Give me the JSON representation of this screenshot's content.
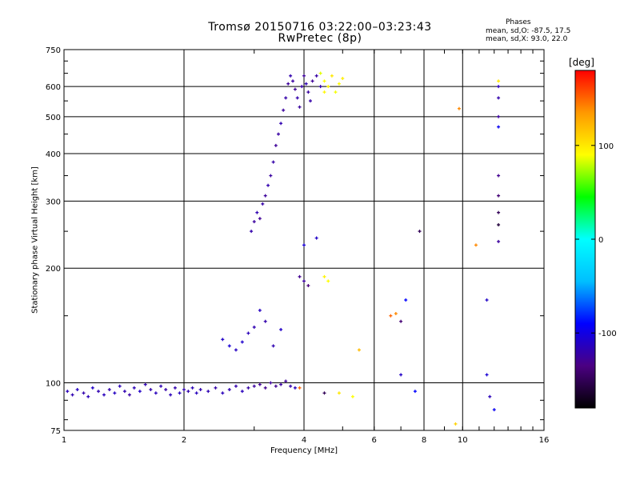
{
  "header": {
    "title_line1": "Tromsø 20150716 03:22:00–03:23:43",
    "title_line2": "RwPretec (8p)",
    "phases_heading": "Phases",
    "phases_line1": "mean, sd,O: -87.5, 17.5",
    "phases_line2": "mean, sd,X:  93.0, 22.0"
  },
  "chart_data": {
    "type": "scatter",
    "title": "Tromsø 20150716 03:22:00–03:23:43",
    "subtitle": "RwPretec (8p)",
    "xlabel": "Frequency [MHz]",
    "ylabel": "Stationary phase Virtual Height [km]",
    "x_scale": "log",
    "y_scale": "log",
    "xlim": [
      1,
      16
    ],
    "ylim": [
      75,
      750
    ],
    "x_ticks": [
      1,
      2,
      4,
      6,
      8,
      10,
      16
    ],
    "y_ticks": [
      75,
      100,
      200,
      300,
      400,
      500,
      600,
      750
    ],
    "grid": true,
    "colorbar": {
      "label": "[deg]",
      "range": [
        -180,
        180
      ],
      "ticks": [
        100,
        0,
        -100
      ],
      "colors": [
        "#000000",
        "#4b0082",
        "#0000ff",
        "#00bfff",
        "#00ffff",
        "#00ff00",
        "#ffff00",
        "#ff9900",
        "#ff0000"
      ]
    },
    "series": [
      {
        "points": [
          [
            1.02,
            95,
            -115
          ],
          [
            1.05,
            93,
            -118
          ],
          [
            1.08,
            96,
            -112
          ],
          [
            1.12,
            94,
            -120
          ],
          [
            1.15,
            92,
            -116
          ],
          [
            1.18,
            97,
            -110
          ],
          [
            1.22,
            95,
            -118
          ],
          [
            1.26,
            93,
            -114
          ],
          [
            1.3,
            96,
            -120
          ],
          [
            1.34,
            94,
            -112
          ],
          [
            1.38,
            98,
            -115
          ],
          [
            1.42,
            95,
            -118
          ],
          [
            1.46,
            93,
            -122
          ],
          [
            1.5,
            97,
            -116
          ],
          [
            1.55,
            95,
            -110
          ],
          [
            1.6,
            99,
            -118
          ],
          [
            1.65,
            96,
            -120
          ],
          [
            1.7,
            94,
            -114
          ],
          [
            1.75,
            98,
            -117
          ],
          [
            1.8,
            96,
            -121
          ],
          [
            1.85,
            93,
            -115
          ],
          [
            1.9,
            97,
            -119
          ],
          [
            1.95,
            94,
            -113
          ],
          [
            2.0,
            96,
            -118
          ],
          [
            2.05,
            95,
            -120
          ],
          [
            2.1,
            97,
            -116
          ],
          [
            2.15,
            94,
            -114
          ],
          [
            2.2,
            96,
            -119
          ],
          [
            2.3,
            95,
            -117
          ],
          [
            2.4,
            97,
            -121
          ],
          [
            2.5,
            94,
            -115
          ],
          [
            2.6,
            96,
            -118
          ],
          [
            2.7,
            98,
            -120
          ],
          [
            2.8,
            95,
            -114
          ],
          [
            2.9,
            97,
            -122
          ],
          [
            3.0,
            98,
            -125
          ],
          [
            3.1,
            99,
            -128
          ],
          [
            3.2,
            97,
            -130
          ],
          [
            3.3,
            100,
            -126
          ],
          [
            3.4,
            98,
            -129
          ],
          [
            3.5,
            99,
            -124
          ],
          [
            3.6,
            101,
            -127
          ],
          [
            3.7,
            98,
            -120
          ],
          [
            3.8,
            97,
            -115
          ]
        ]
      },
      {
        "points": [
          [
            2.5,
            130,
            -110
          ],
          [
            2.6,
            125,
            -105
          ],
          [
            2.7,
            122,
            -112
          ],
          [
            2.8,
            128,
            -108
          ],
          [
            2.9,
            135,
            -115
          ],
          [
            3.0,
            140,
            -118
          ],
          [
            3.1,
            155,
            -112
          ],
          [
            3.2,
            145,
            -120
          ],
          [
            3.35,
            125,
            -118
          ],
          [
            3.5,
            138,
            -110
          ]
        ]
      },
      {
        "points": [
          [
            2.95,
            250,
            -120
          ],
          [
            3.0,
            265,
            -125
          ],
          [
            3.05,
            280,
            -118
          ],
          [
            3.1,
            270,
            -128
          ],
          [
            3.15,
            295,
            -122
          ],
          [
            3.2,
            310,
            -126
          ],
          [
            3.25,
            330,
            -119
          ],
          [
            3.3,
            350,
            -124
          ],
          [
            3.35,
            380,
            -121
          ],
          [
            3.4,
            420,
            -127
          ],
          [
            3.45,
            450,
            -123
          ],
          [
            3.5,
            480,
            -118
          ],
          [
            3.55,
            520,
            -125
          ],
          [
            3.6,
            560,
            -121
          ],
          [
            3.65,
            610,
            -126
          ],
          [
            3.7,
            640,
            -119
          ],
          [
            3.75,
            620,
            -124
          ],
          [
            3.8,
            590,
            -128
          ],
          [
            3.85,
            560,
            -120
          ],
          [
            3.9,
            530,
            -125
          ],
          [
            3.95,
            600,
            -122
          ],
          [
            4.0,
            640,
            -126
          ],
          [
            4.05,
            610,
            -118
          ],
          [
            4.1,
            580,
            -124
          ],
          [
            4.15,
            550,
            -121
          ],
          [
            4.2,
            620,
            -127
          ],
          [
            4.3,
            640,
            -123
          ],
          [
            4.4,
            600,
            -119
          ]
        ]
      },
      {
        "points": [
          [
            4.5,
            620,
            90
          ],
          [
            4.6,
            600,
            95
          ],
          [
            4.7,
            640,
            100
          ],
          [
            4.8,
            580,
            88
          ],
          [
            4.9,
            610,
            92
          ],
          [
            5.0,
            630,
            97
          ],
          [
            4.4,
            650,
            85
          ],
          [
            4.5,
            580,
            93
          ]
        ]
      },
      {
        "points": [
          [
            3.9,
            190,
            -130
          ],
          [
            4.0,
            185,
            -125
          ],
          [
            4.1,
            180,
            -135
          ],
          [
            4.5,
            190,
            95
          ],
          [
            4.6,
            185,
            90
          ],
          [
            4.3,
            240,
            -110
          ],
          [
            4.0,
            230,
            -105
          ]
        ]
      },
      {
        "points": [
          [
            6.6,
            150,
            150
          ],
          [
            6.8,
            152,
            140
          ],
          [
            7.0,
            145,
            -140
          ],
          [
            7.2,
            165,
            -90
          ],
          [
            7.6,
            95,
            -90
          ],
          [
            7.8,
            250,
            -150
          ],
          [
            7.0,
            105,
            -110
          ],
          [
            9.8,
            525,
            140
          ],
          [
            9.6,
            78,
            110
          ],
          [
            10.8,
            230,
            140
          ],
          [
            11.5,
            165,
            -110
          ],
          [
            11.5,
            105,
            -105
          ],
          [
            11.7,
            92,
            -115
          ],
          [
            12.0,
            85,
            -95
          ],
          [
            12.3,
            620,
            100
          ],
          [
            12.3,
            600,
            -115
          ],
          [
            12.3,
            560,
            -120
          ],
          [
            12.3,
            500,
            -125
          ],
          [
            12.3,
            470,
            -95
          ],
          [
            12.3,
            350,
            -130
          ],
          [
            12.3,
            310,
            -140
          ],
          [
            12.3,
            280,
            -150
          ],
          [
            12.3,
            260,
            -160
          ],
          [
            12.3,
            235,
            -125
          ],
          [
            3.9,
            97,
            150
          ],
          [
            4.5,
            94,
            -150
          ],
          [
            4.9,
            94,
            100
          ],
          [
            5.3,
            92,
            90
          ],
          [
            5.5,
            122,
            120
          ]
        ]
      }
    ]
  }
}
